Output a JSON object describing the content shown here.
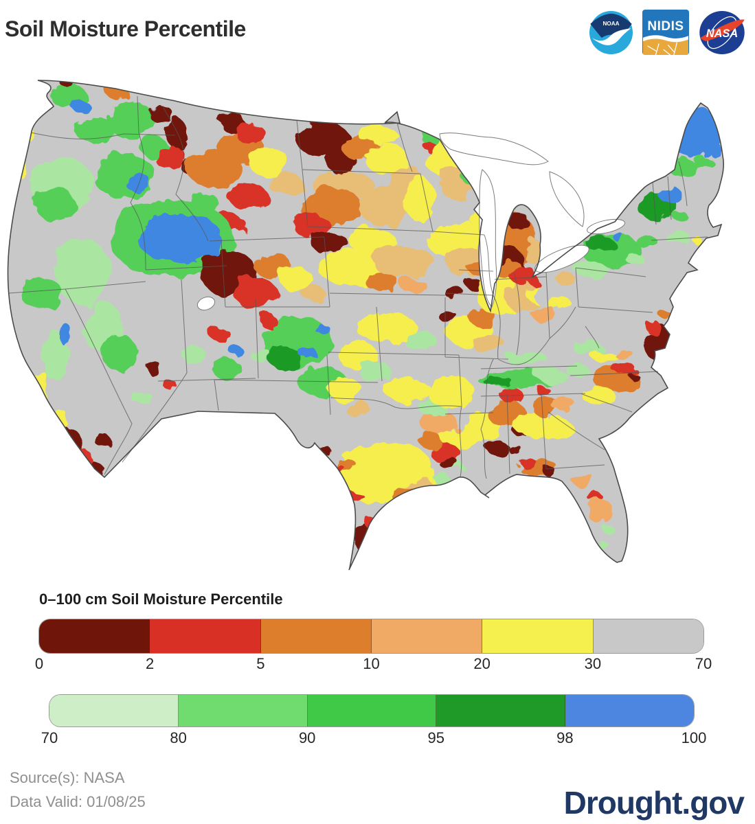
{
  "header": {
    "title": "Soil Moisture Percentile",
    "logos": {
      "noaa": {
        "name": "NOAA",
        "dark_blue": "#173a70",
        "light_blue": "#29a8dc"
      },
      "nidis": {
        "name": "NIDIS",
        "blue": "#2176bc",
        "gold": "#e9a83b"
      },
      "nasa": {
        "name": "NASA",
        "blue": "#1c3f94",
        "red": "#e8442c"
      }
    }
  },
  "map": {
    "name": "CONUS 0–100 cm soil moisture percentile map",
    "base_color": "#c8c8c8",
    "outline_color": "#4a4a4a",
    "state_line_color": "#555555",
    "lake_color": "#ffffff",
    "palette": {
      "M": "#701509",
      "R": "#d93026",
      "O": "#dd7e2d",
      "LO": "#f1aa66",
      "T": "#e8bd74",
      "Y": "#f5ee4d",
      "G": "#c8c8c8",
      "LG": "#abe5a2",
      "MG": "#54cf58",
      "DG": "#1f9a28",
      "B": "#4187e2",
      "W": "#ffffff"
    }
  },
  "legend": {
    "title": "0–100 cm Soil Moisture Percentile",
    "bar_dry": {
      "colors": [
        "#701509",
        "#d93026",
        "#dd7e2d",
        "#f1aa66",
        "#f6f04f",
        "#c8c8c8"
      ],
      "ticks": [
        "0",
        "2",
        "5",
        "10",
        "20",
        "30",
        "70"
      ]
    },
    "bar_wet": {
      "colors": [
        "#cdeec6",
        "#70dc70",
        "#3fc947",
        "#1f9a28",
        "#4c86e0"
      ],
      "ticks": [
        "70",
        "80",
        "90",
        "95",
        "98",
        "100"
      ]
    }
  },
  "footer": {
    "source": "Source(s): NASA",
    "data_valid": "Data Valid: 01/08/25",
    "brand": "Drought.gov",
    "brand_color": "#1f3864"
  }
}
